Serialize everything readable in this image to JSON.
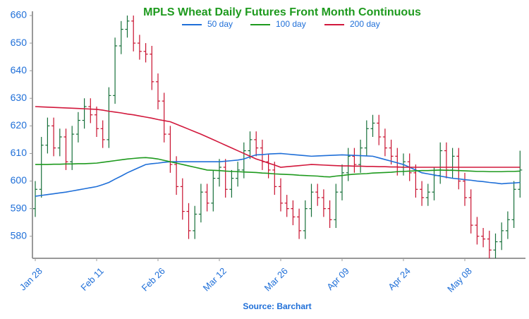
{
  "chart_data": {
    "type": "ohlc",
    "title": "MPLS Wheat Daily Futures Front Month Continuous",
    "source": "Source: Barchart",
    "categories": [
      "Jan 28",
      null,
      null,
      null,
      null,
      null,
      null,
      null,
      null,
      null,
      "Feb 11",
      null,
      null,
      null,
      null,
      null,
      null,
      null,
      null,
      null,
      "Feb 26",
      null,
      null,
      null,
      null,
      null,
      null,
      null,
      null,
      null,
      "Mar 12",
      null,
      null,
      null,
      null,
      null,
      null,
      null,
      null,
      null,
      "Mar 26",
      null,
      null,
      null,
      null,
      null,
      null,
      null,
      null,
      null,
      "Apr 09",
      null,
      null,
      null,
      null,
      null,
      null,
      null,
      null,
      null,
      "Apr 24",
      null,
      null,
      null,
      null,
      null,
      null,
      null,
      null,
      null,
      "May 08",
      null,
      null,
      null,
      null,
      null,
      null,
      null,
      null,
      null
    ],
    "ohlc": {
      "up_color": "#17703a",
      "down_color": "#c8102e",
      "open": [
        590,
        597,
        613,
        620,
        612,
        616,
        607,
        617,
        622,
        627,
        624,
        619,
        615,
        631,
        649,
        655,
        658,
        650,
        647,
        646,
        636,
        629,
        617,
        606,
        598,
        589,
        582,
        588,
        596,
        592,
        601,
        605,
        597,
        601,
        604,
        611,
        615,
        612,
        607,
        604,
        598,
        592,
        590,
        587,
        582,
        590,
        596,
        594,
        590,
        586,
        596,
        603,
        609,
        606,
        612,
        619,
        621,
        616,
        612,
        609,
        605,
        607,
        603,
        597,
        594,
        596,
        602,
        611,
        604,
        609,
        600,
        594,
        584,
        580,
        579,
        575,
        578,
        582,
        586,
        597
      ],
      "high": [
        600,
        616,
        623,
        623,
        619,
        619,
        620,
        625,
        630,
        630,
        627,
        622,
        634,
        652,
        658,
        660,
        660,
        653,
        650,
        649,
        639,
        632,
        620,
        609,
        601,
        592,
        591,
        599,
        599,
        604,
        608,
        608,
        604,
        607,
        614,
        618,
        618,
        615,
        610,
        607,
        601,
        595,
        593,
        590,
        593,
        599,
        599,
        597,
        593,
        599,
        606,
        612,
        612,
        615,
        622,
        624,
        624,
        619,
        615,
        612,
        610,
        610,
        606,
        600,
        599,
        605,
        614,
        614,
        612,
        612,
        603,
        597,
        587,
        583,
        582,
        581,
        585,
        589,
        600,
        611
      ],
      "low": [
        587,
        594,
        610,
        609,
        609,
        604,
        604,
        614,
        619,
        621,
        616,
        612,
        612,
        628,
        646,
        652,
        647,
        644,
        643,
        633,
        626,
        614,
        603,
        595,
        586,
        579,
        579,
        585,
        589,
        589,
        598,
        594,
        594,
        598,
        601,
        608,
        609,
        604,
        601,
        595,
        589,
        587,
        584,
        579,
        579,
        587,
        591,
        587,
        583,
        583,
        593,
        600,
        603,
        603,
        609,
        616,
        613,
        609,
        606,
        602,
        602,
        600,
        594,
        591,
        591,
        593,
        599,
        601,
        601,
        597,
        591,
        581,
        577,
        576,
        572,
        572,
        575,
        579,
        583,
        594
      ],
      "close": [
        597,
        613,
        620,
        612,
        616,
        607,
        617,
        622,
        627,
        624,
        619,
        615,
        631,
        649,
        655,
        658,
        650,
        647,
        646,
        636,
        629,
        617,
        606,
        598,
        589,
        582,
        588,
        596,
        592,
        601,
        605,
        597,
        601,
        604,
        611,
        615,
        612,
        607,
        604,
        598,
        592,
        590,
        587,
        582,
        590,
        596,
        594,
        590,
        586,
        596,
        603,
        609,
        606,
        612,
        619,
        621,
        616,
        612,
        609,
        605,
        607,
        603,
        597,
        594,
        596,
        602,
        611,
        604,
        609,
        600,
        594,
        584,
        580,
        579,
        575,
        578,
        582,
        586,
        597,
        604
      ]
    },
    "series": [
      {
        "name": "50 day",
        "color": "#1f6fd8",
        "values": [
          594.5,
          594.8,
          595.1,
          595.4,
          595.7,
          596,
          596.4,
          596.8,
          597.2,
          597.6,
          598,
          598.7,
          599.5,
          600.7,
          601.8,
          603,
          604,
          605,
          606,
          606.3,
          606.5,
          606.8,
          607,
          607,
          607,
          607,
          607,
          607,
          607,
          607,
          607,
          607.2,
          607.4,
          607.6,
          608,
          608.8,
          609.5,
          609.6,
          609.8,
          609.9,
          610,
          609.8,
          609.6,
          609.4,
          609.2,
          609,
          609.1,
          609.2,
          609.3,
          609.4,
          609.5,
          609.4,
          609.3,
          609.2,
          609.1,
          609,
          608.4,
          607.8,
          607.2,
          606.6,
          606,
          605,
          604,
          603,
          602.6,
          602.2,
          601.8,
          601.4,
          601,
          600.8,
          600.5,
          600.3,
          600,
          599.8,
          599.5,
          599.3,
          599,
          599.2,
          599.3,
          599.5
        ]
      },
      {
        "name": "100 day",
        "color": "#1e9a1e",
        "values": [
          606,
          606,
          606,
          606.1,
          606.1,
          606.2,
          606.2,
          606.3,
          606.3,
          606.4,
          606.5,
          606.8,
          607.1,
          607.4,
          607.7,
          608,
          608.2,
          608.4,
          608.5,
          608.3,
          608,
          607.5,
          607,
          606.5,
          606,
          605.5,
          605,
          604.5,
          604,
          603.9,
          603.8,
          603.6,
          603.5,
          603.4,
          603.3,
          603.2,
          603.1,
          602.9,
          602.8,
          602.6,
          602.5,
          602.4,
          602.3,
          602.1,
          602,
          601.9,
          601.8,
          601.6,
          601.5,
          601.8,
          602,
          602.3,
          602.5,
          602.6,
          602.7,
          602.9,
          603,
          603.1,
          603.2,
          603.4,
          603.5,
          603.6,
          603.7,
          603.8,
          603.8,
          603.9,
          604,
          603.9,
          603.9,
          603.8,
          603.7,
          603.6,
          603.5,
          603.5,
          603.4,
          603.4,
          603.4,
          603.5,
          603.5,
          603.6
        ]
      },
      {
        "name": "200 day",
        "color": "#d2183c",
        "values": [
          627,
          626.9,
          626.8,
          626.7,
          626.6,
          626.5,
          626.4,
          626.3,
          626.2,
          626.1,
          626,
          625.7,
          625.3,
          625,
          624.7,
          624.3,
          624,
          623.6,
          623.2,
          622.8,
          622.3,
          621.9,
          621.5,
          620.6,
          619.7,
          618.8,
          617.9,
          617,
          616,
          615,
          614,
          613,
          612,
          611,
          610,
          609,
          608,
          607.3,
          606.5,
          605.8,
          605,
          605.2,
          605.4,
          605.6,
          605.8,
          606,
          605.9,
          605.8,
          605.7,
          605.6,
          605.5,
          605.5,
          605.4,
          605.4,
          605.3,
          605.3,
          605.2,
          605.2,
          605.1,
          605.1,
          605,
          605,
          605,
          605,
          605,
          605,
          605,
          605,
          605,
          605,
          605,
          605,
          605,
          605,
          605,
          605,
          605,
          605,
          605,
          605
        ]
      }
    ],
    "ylim": [
      572,
      660
    ],
    "yticks": [
      580,
      590,
      600,
      610,
      620,
      630,
      640,
      650,
      660
    ],
    "axis_color": "#1f6fd8",
    "title_color": "#1e9a1e"
  }
}
